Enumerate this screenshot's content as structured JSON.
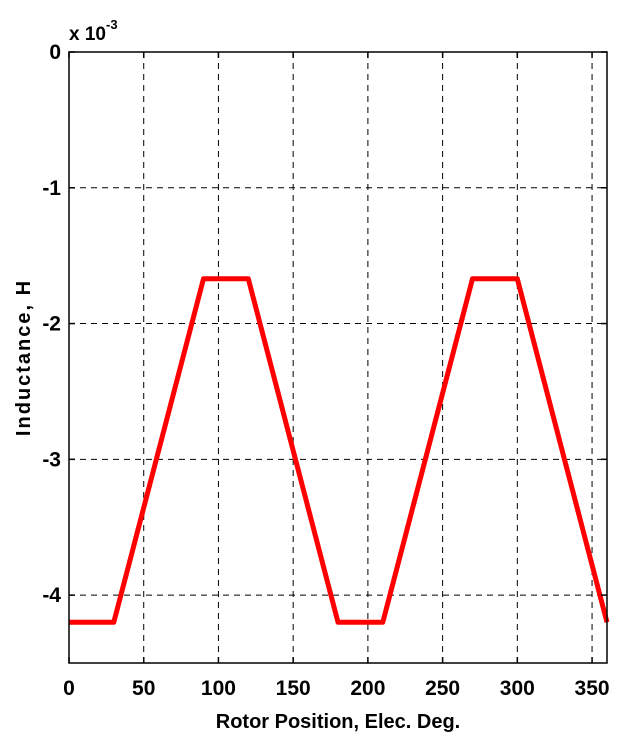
{
  "chart_data": {
    "type": "line",
    "title": "",
    "xlabel": "Rotor Position, Elec. Deg.",
    "ylabel": "Inductance, H",
    "y_multiplier": {
      "base": "x 10",
      "exponent": "-3"
    },
    "xlim": [
      0,
      360
    ],
    "ylim": [
      -4.5,
      0
    ],
    "xticks": [
      0,
      50,
      100,
      150,
      200,
      250,
      300,
      350
    ],
    "xtick_labels": [
      "0",
      "50",
      "100",
      "150",
      "200",
      "250",
      "300",
      "350"
    ],
    "yticks": [
      0,
      -1,
      -2,
      -3,
      -4
    ],
    "ytick_labels": [
      "0",
      "-1",
      "-2",
      "-3",
      "-4"
    ],
    "grid": true,
    "grid_style": "dashed",
    "series": [
      {
        "color": "#ff0000",
        "x": [
          0,
          30,
          90,
          120,
          180,
          210,
          270,
          300,
          360
        ],
        "y": [
          -4.2,
          -4.2,
          -1.67,
          -1.67,
          -4.2,
          -4.2,
          -1.67,
          -1.67,
          -4.2
        ]
      }
    ]
  }
}
